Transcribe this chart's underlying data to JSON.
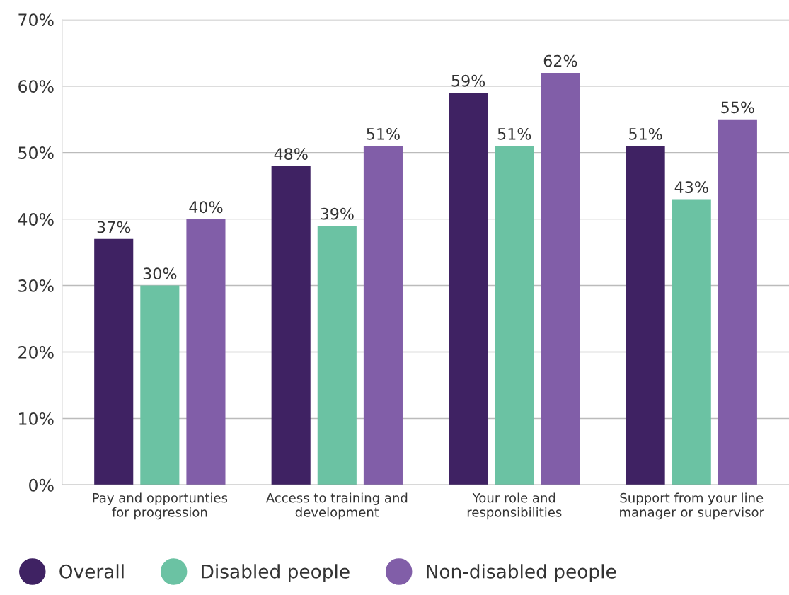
{
  "chart_data": {
    "type": "bar",
    "categories": [
      "Pay and opportunties\nfor progression",
      "Access to training and\ndevelopment",
      "Your role and\nresponsibilities",
      "Support from your line\nmanager or supervisor"
    ],
    "series": [
      {
        "name": "Overall",
        "color": "#3f2263",
        "values": [
          37,
          48,
          59,
          51
        ],
        "value_labels": [
          "37%",
          "48%",
          "59%",
          "51%"
        ]
      },
      {
        "name": "Disabled people",
        "color": "#6bc2a3",
        "values": [
          30,
          39,
          51,
          43
        ],
        "value_labels": [
          "30%",
          "39%",
          "51%",
          "43%"
        ]
      },
      {
        "name": "Non-disabled people",
        "color": "#815ea8",
        "values": [
          40,
          51,
          62,
          55
        ],
        "value_labels": [
          "40%",
          "51%",
          "62%",
          "55%"
        ]
      }
    ],
    "ylim": [
      0,
      70
    ],
    "yticks": [
      {
        "value": 0,
        "label": "0%"
      },
      {
        "value": 10,
        "label": "10%"
      },
      {
        "value": 20,
        "label": "20%"
      },
      {
        "value": 30,
        "label": "30%"
      },
      {
        "value": 40,
        "label": "40%"
      },
      {
        "value": 50,
        "label": "50%"
      },
      {
        "value": 60,
        "label": "60%"
      },
      {
        "value": 70,
        "label": "70%"
      }
    ],
    "grid": "y",
    "legend": "bottom"
  }
}
